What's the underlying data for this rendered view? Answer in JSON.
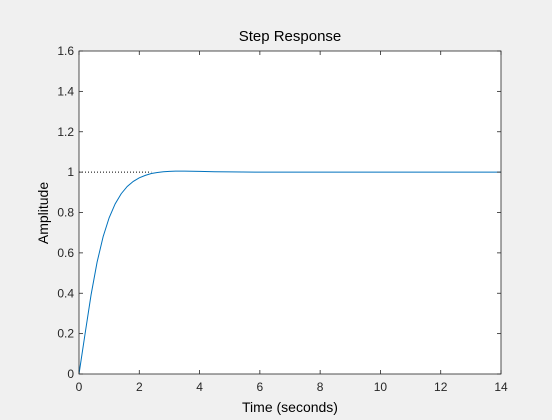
{
  "chart_data": {
    "type": "line",
    "title": "Step Response",
    "xlabel": "Time (seconds)",
    "ylabel": "Amplitude",
    "xlim": [
      0,
      14
    ],
    "ylim": [
      0,
      1.6
    ],
    "xticks": [
      0,
      2,
      4,
      6,
      8,
      10,
      12,
      14
    ],
    "yticks": [
      0,
      0.2,
      0.4,
      0.6,
      0.8,
      1,
      1.2,
      1.4,
      1.6
    ],
    "xtick_labels": [
      "0",
      "2",
      "4",
      "6",
      "8",
      "10",
      "12",
      "14"
    ],
    "ytick_labels": [
      "0",
      "0.2",
      "0.4",
      "0.6",
      "0.8",
      "1",
      "1.2",
      "1.4",
      "1.6"
    ],
    "grid": false,
    "series": [
      {
        "color": "#0072bd",
        "x": [
          0,
          0.2,
          0.4,
          0.6,
          0.8,
          1.0,
          1.2,
          1.4,
          1.6,
          1.8,
          2.0,
          2.2,
          2.4,
          2.6,
          2.8,
          3.0,
          3.2,
          3.5,
          4.0,
          4.5,
          5.0,
          6.0,
          8.0,
          10.0,
          12.0,
          14.0
        ],
        "y": [
          0,
          0.198,
          0.392,
          0.554,
          0.68,
          0.774,
          0.843,
          0.893,
          0.929,
          0.954,
          0.972,
          0.984,
          0.993,
          0.998,
          1.002,
          1.004,
          1.005,
          1.005,
          1.004,
          1.002,
          1.001,
          1.0,
          1.0,
          1.0,
          1.0,
          1.0
        ]
      }
    ],
    "reference_line": {
      "y": 1,
      "x_range": [
        0,
        2.4
      ],
      "style": "dotted",
      "color": "#000000"
    }
  }
}
